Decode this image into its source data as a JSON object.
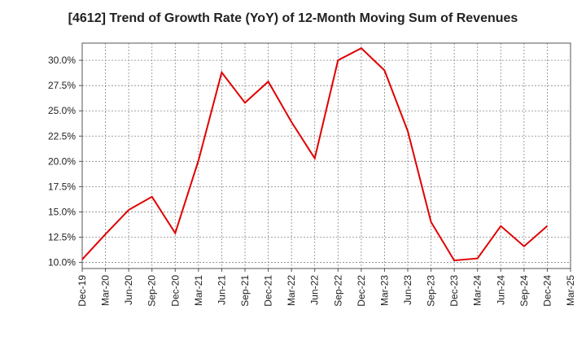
{
  "chart_data": {
    "type": "line",
    "title": "[4612]  Trend of Growth Rate (YoY) of 12-Month Moving Sum of Revenues",
    "xlabel": "",
    "ylabel": "",
    "x_tick_labels": [
      "Dec-19",
      "Mar-20",
      "Jun-20",
      "Sep-20",
      "Dec-20",
      "Mar-21",
      "Jun-21",
      "Sep-21",
      "Dec-21",
      "Mar-22",
      "Jun-22",
      "Sep-22",
      "Dec-22",
      "Mar-23",
      "Jun-23",
      "Sep-23",
      "Dec-23",
      "Mar-24",
      "Jun-24",
      "Sep-24",
      "Dec-24",
      "Mar-25"
    ],
    "y_tick_labels": [
      "10.0%",
      "12.5%",
      "15.0%",
      "17.5%",
      "20.0%",
      "22.5%",
      "25.0%",
      "27.5%",
      "30.0%"
    ],
    "y_ticks": [
      10.0,
      12.5,
      15.0,
      17.5,
      20.0,
      22.5,
      25.0,
      27.5,
      30.0
    ],
    "ylim": [
      9.4,
      31.7
    ],
    "grid": true,
    "series": [
      {
        "name": "",
        "color": "#e00000",
        "x": [
          "Dec-19",
          "Mar-20",
          "Jun-20",
          "Sep-20",
          "Dec-20",
          "Mar-21",
          "Jun-21",
          "Sep-21",
          "Dec-21",
          "Mar-22",
          "Jun-22",
          "Sep-22",
          "Dec-22",
          "Mar-23",
          "Jun-23",
          "Sep-23",
          "Dec-23",
          "Mar-24",
          "Jun-24",
          "Sep-24",
          "Dec-24"
        ],
        "values": [
          10.3,
          12.8,
          15.2,
          16.5,
          12.9,
          20.1,
          28.8,
          25.8,
          27.9,
          23.9,
          20.3,
          30.0,
          31.2,
          29.0,
          23.0,
          14.0,
          10.2,
          10.4,
          13.6,
          11.6,
          13.6
        ]
      }
    ]
  }
}
